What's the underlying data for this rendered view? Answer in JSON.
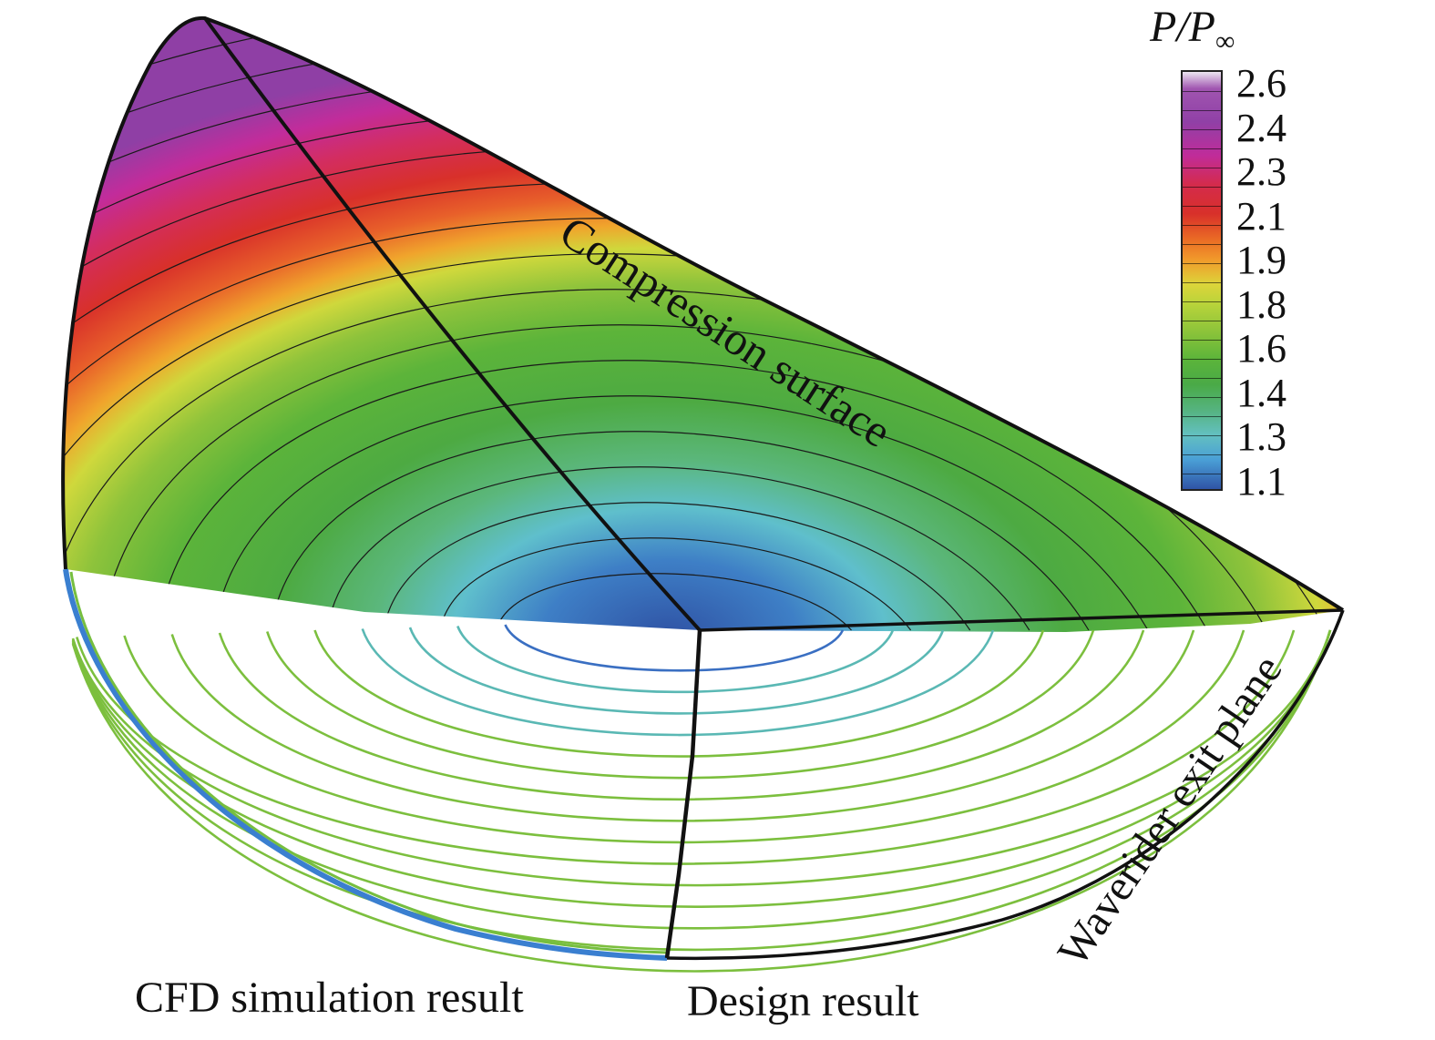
{
  "labels": {
    "compression_surface": "Compression surface",
    "exit_plane": "Waverider exit plane",
    "cfd": "CFD simulation result",
    "design": "Design result"
  },
  "legend": {
    "title_main": "P/P",
    "title_sub": "∞",
    "ticks": [
      "2.6",
      "2.4",
      "2.3",
      "2.1",
      "1.9",
      "1.8",
      "1.6",
      "1.4",
      "1.3",
      "1.1"
    ]
  },
  "colors": {
    "outline": "#111111",
    "contour_green": "#7cbf3e",
    "contour_teal": "#5ab8b4",
    "contour_blue": "#3a6fc2"
  }
}
